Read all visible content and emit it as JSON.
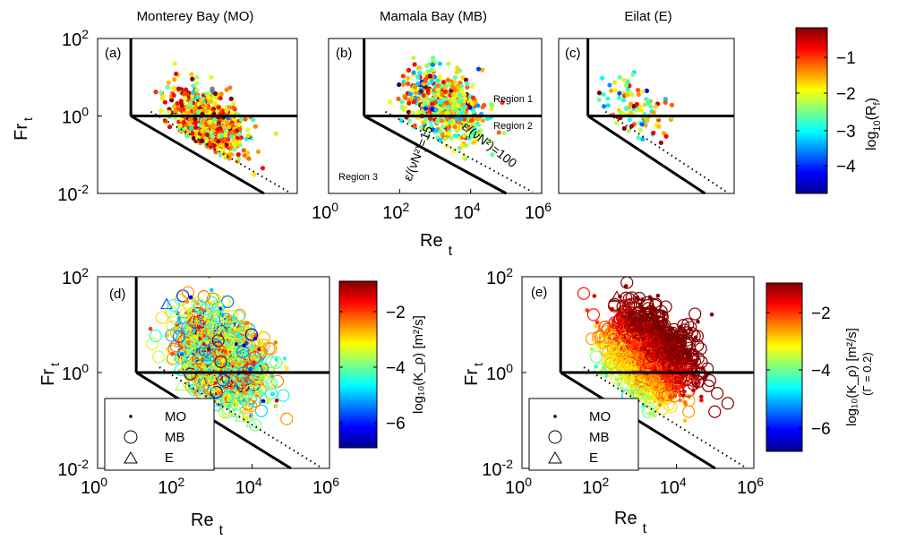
{
  "colors": {
    "jet": [
      "#00008f",
      "#0000ff",
      "#0080ff",
      "#00ffff",
      "#80ff80",
      "#ffff00",
      "#ff8000",
      "#ff0000",
      "#800000"
    ],
    "axis": "#000000"
  },
  "figure": {
    "xlabel": "Re",
    "xlabel_sub": "t",
    "ylabel": "Fr",
    "ylabel_sub": "t",
    "x_ticks": [
      {
        "b": "10",
        "e": "0",
        "v": 0
      },
      {
        "b": "10",
        "e": "2",
        "v": 2
      },
      {
        "b": "10",
        "e": "4",
        "v": 4
      },
      {
        "b": "10",
        "e": "6",
        "v": 6
      }
    ],
    "y_ticks": [
      {
        "b": "10",
        "e": "-2",
        "v": -2
      },
      {
        "b": "10",
        "e": "0",
        "v": 0
      },
      {
        "b": "10",
        "e": "2",
        "v": 2
      }
    ]
  },
  "chart_data": [
    {
      "id": "a",
      "type": "scatter",
      "title": "Monterey Bay (MO)",
      "panel_label": "(a)",
      "xscale": "log",
      "yscale": "log",
      "xlim": [
        1,
        1000000
      ],
      "ylim": [
        0.01,
        100
      ],
      "color_variable": "log10(Rf)",
      "lines": [
        "Fr_t = 1 (Region 1/2 boundary)",
        "epsilon/(nu N^2) = 15",
        "epsilon/(nu N^2) = 100 (dotted)"
      ],
      "cloud": {
        "x_center_log10": 3.3,
        "y_center_log10": -0.2,
        "n": 700,
        "seed": 11
      },
      "show_xticks": false
    },
    {
      "id": "b",
      "type": "scatter",
      "title": "Mamala Bay (MB)",
      "panel_label": "(b)",
      "xscale": "log",
      "yscale": "log",
      "xlim": [
        1,
        1000000
      ],
      "ylim": [
        0.01,
        100
      ],
      "color_variable": "log10(Rf)",
      "annotations": {
        "region1": "Region 1",
        "region2": "Region 2",
        "region3": "Region 3",
        "line15": "ε/(νN²)=15",
        "line100": "ε/(νN²)=100"
      },
      "cloud": {
        "x_center_log10": 3.2,
        "y_center_log10": 0.3,
        "n": 600,
        "seed": 23
      },
      "show_xticks": true
    },
    {
      "id": "c",
      "type": "scatter",
      "title": "Eilat (E)",
      "panel_label": "(c)",
      "xscale": "log",
      "yscale": "log",
      "xlim": [
        1,
        1000000
      ],
      "ylim": [
        0.01,
        100
      ],
      "color_variable": "log10(Rf)",
      "cloud": {
        "x_center_log10": 2.7,
        "y_center_log10": 0.0,
        "n": 120,
        "seed": 37
      },
      "show_xticks": false
    },
    {
      "id": "d",
      "type": "scatter",
      "panel_label": "(d)",
      "xscale": "log",
      "yscale": "log",
      "xlim": [
        1,
        1000000
      ],
      "ylim": [
        0.01,
        100
      ],
      "color_variable": "log10(K_rho) [m^2/s]",
      "legend": {
        "items": [
          "MO",
          "MB",
          "E"
        ],
        "placement": "bottom-left"
      },
      "cloud": {
        "x_center_log10": 3.2,
        "y_center_log10": 0.3,
        "n": 1300,
        "seed": 51
      },
      "show_xticks": true
    },
    {
      "id": "e",
      "type": "scatter",
      "panel_label": "(e)",
      "xscale": "log",
      "yscale": "log",
      "xlim": [
        1,
        1000000
      ],
      "ylim": [
        0.01,
        100
      ],
      "color_variable": "log10(K_rho) [m^2/s] (Γ = 0.2)",
      "legend": {
        "items": [
          "MO",
          "MB",
          "E"
        ],
        "placement": "bottom-left"
      },
      "cloud": {
        "x_center_log10": 3.3,
        "y_center_log10": 0.4,
        "n": 1500,
        "seed": 77
      },
      "show_xticks": true
    }
  ],
  "colorbars": [
    {
      "id": "cb1",
      "label_pre": "log",
      "label_sub": "10",
      "label_post": "(R",
      "label_sub2": "f",
      "label_end": ")",
      "ticks": [
        "−1",
        "−2",
        "−3",
        "−4"
      ]
    },
    {
      "id": "cb2",
      "label": "log₁₀(K_ρ) [m²/s]",
      "ticks": [
        "−2",
        "−4",
        "−6"
      ]
    },
    {
      "id": "cb3",
      "label": "log₁₀(K_ρ) [m²/s]",
      "label2": "(Γ = 0.2)",
      "ticks": [
        "−2",
        "−4",
        "−6"
      ]
    }
  ],
  "legend": {
    "mo": "MO",
    "mb": "MB",
    "e": "E"
  }
}
